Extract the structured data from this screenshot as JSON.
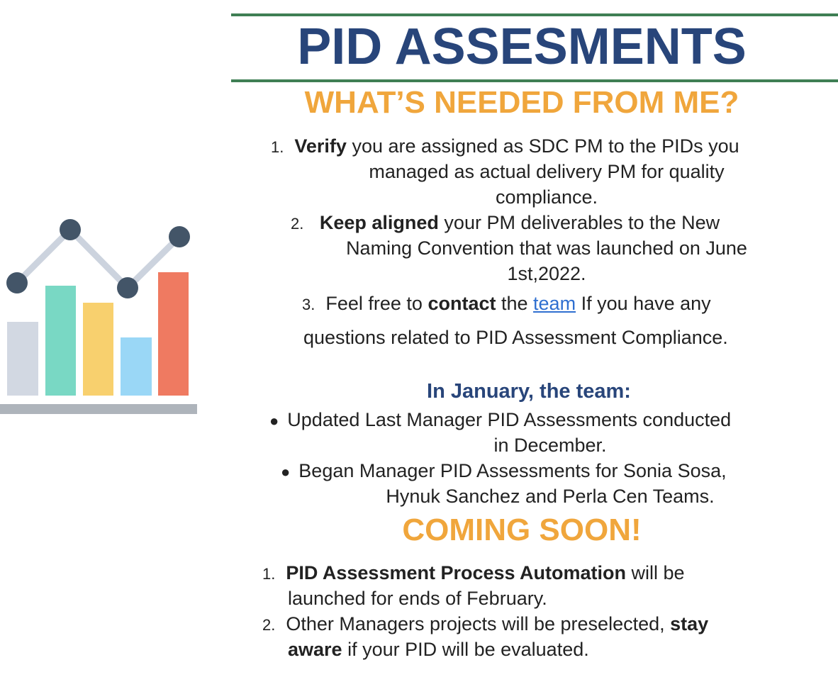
{
  "header": {
    "title": "PID ASSESMENTS",
    "subtitle": "WHAT’S NEEDED FROM ME?"
  },
  "needed": {
    "item1": {
      "num": "1.",
      "bold": "Verify",
      "rest": " you are assigned as SDC PM to the PIDs you",
      "line2": "managed as actual delivery PM for quality",
      "line3": "compliance."
    },
    "item2": {
      "num": "2.",
      "bold": "Keep aligned",
      "rest": " your PM deliverables to the New",
      "line2": "Naming Convention that was launched on June",
      "line3": "1st,2022."
    },
    "item3": {
      "num": "3.",
      "pre": "Feel free to ",
      "bold": "contact",
      "mid": " the ",
      "link": "team",
      "post": " If you have any",
      "line2": "questions related to PID Assessment Compliance."
    }
  },
  "january": {
    "heading": "In January, the team:",
    "bullet1_line1": "Updated Last Manager PID Assessments conducted",
    "bullet1_line2": "in December.",
    "bullet2_line1": "Began Manager PID Assessments for Sonia Sosa,",
    "bullet2_line2": "Hynuk Sanchez and Perla Cen Teams."
  },
  "coming_soon": {
    "heading": "COMING SOON!",
    "item1": {
      "num": "1.",
      "bold": "PID Assessment Process Automation",
      "rest": " will be",
      "line2": "launched for ends of February."
    },
    "item2": {
      "num": "2.",
      "pre": "Other Managers projects will be preselected, ",
      "bold1": "stay",
      "bold2": "aware",
      "post": " if your PID will be evaluated."
    }
  },
  "illustration": {
    "icon": "bar-line-chart-icon",
    "colors": {
      "bar1": "#d2d8e2",
      "bar2": "#79d8c4",
      "bar3": "#f8d06e",
      "bar4": "#9ad7f6",
      "bar5": "#ef7a61",
      "line": "#ccd3de",
      "dots": "#435568",
      "base": "#aeb4bb"
    }
  },
  "colors": {
    "title": "#28457a",
    "accent": "#f0a63c",
    "rule": "#3f7f54",
    "link": "#2f6fd0"
  }
}
